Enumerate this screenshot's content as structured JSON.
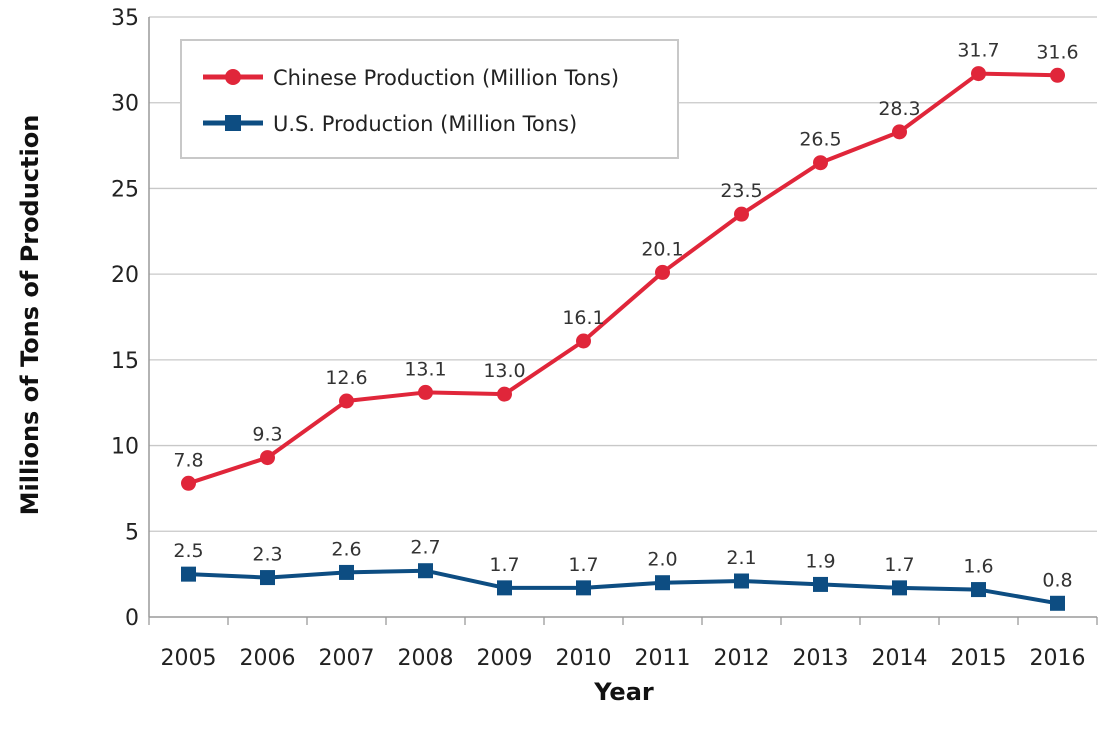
{
  "chart_data": {
    "type": "line",
    "title": "",
    "xlabel": "Year",
    "ylabel": "Millions of Tons of Production",
    "x": [
      "2005",
      "2006",
      "2007",
      "2008",
      "2009",
      "2010",
      "2011",
      "2012",
      "2013",
      "2014",
      "2015",
      "2016"
    ],
    "ylim": [
      0,
      35
    ],
    "yticks": [
      0,
      5,
      10,
      15,
      20,
      25,
      30,
      35
    ],
    "grid": true,
    "legend_position": "top-left",
    "series": [
      {
        "name": "Chinese Production (Million Tons)",
        "color": "#e0263a",
        "marker": "circle",
        "values": [
          7.8,
          9.3,
          12.6,
          13.1,
          13.0,
          16.1,
          20.1,
          23.5,
          26.5,
          28.3,
          31.7,
          31.6
        ],
        "labels": [
          "7.8",
          "9.3",
          "12.6",
          "13.1",
          "13.0",
          "16.1",
          "20.1",
          "23.5",
          "26.5",
          "28.3",
          "31.7",
          "31.6"
        ]
      },
      {
        "name": "U.S. Production (Million Tons)",
        "color": "#0d4d82",
        "marker": "square",
        "values": [
          2.5,
          2.3,
          2.6,
          2.7,
          1.7,
          1.7,
          2.0,
          2.1,
          1.9,
          1.7,
          1.6,
          0.8
        ],
        "labels": [
          "2.5",
          "2.3",
          "2.6",
          "2.7",
          "1.7",
          "1.7",
          "2.0",
          "2.1",
          "1.9",
          "1.7",
          "1.6",
          "0.8"
        ]
      }
    ]
  }
}
